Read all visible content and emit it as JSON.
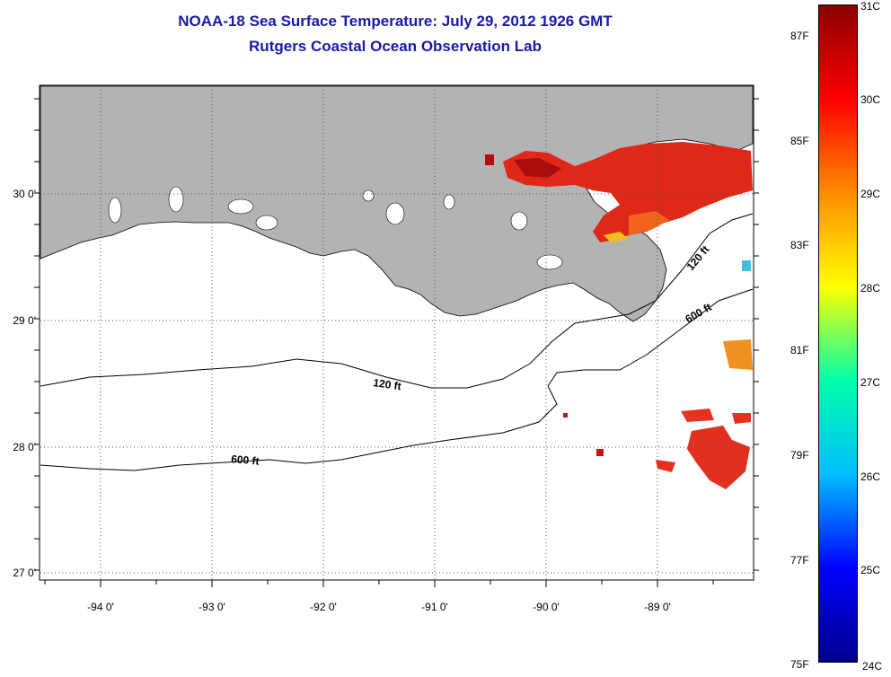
{
  "title": {
    "line1": "NOAA-18 Sea Surface Temperature:  July 29, 2012 1926 GMT",
    "line2": "Rutgers Coastal Ocean Observation Lab"
  },
  "map": {
    "lon_ticks": [
      "-94 0'",
      "-93 0'",
      "-92 0'",
      "-91 0'",
      "-90 0'",
      "-89 0'"
    ],
    "lat_ticks": [
      "30 0'",
      "29 0'",
      "28 0'",
      "27 0'"
    ],
    "contour_labels": [
      "120 ft",
      "600 ft",
      "120 ft",
      "600 ft"
    ],
    "colors": {
      "land": "#b3b3b3",
      "ocean": "#ffffff",
      "warm_water": "#e02010"
    }
  },
  "colorbar": {
    "colors": [
      "#00008b",
      "#0000ff",
      "#00bfff",
      "#00ffaa",
      "#ffff00",
      "#ff8c00",
      "#ff0000",
      "#8b0000"
    ],
    "celsius": [
      "31C",
      "30C",
      "29C",
      "28C",
      "27C",
      "26C",
      "25C",
      "24C"
    ],
    "fahrenheit": [
      "87F",
      "85F",
      "83F",
      "81F",
      "79F",
      "77F",
      "75F"
    ]
  }
}
